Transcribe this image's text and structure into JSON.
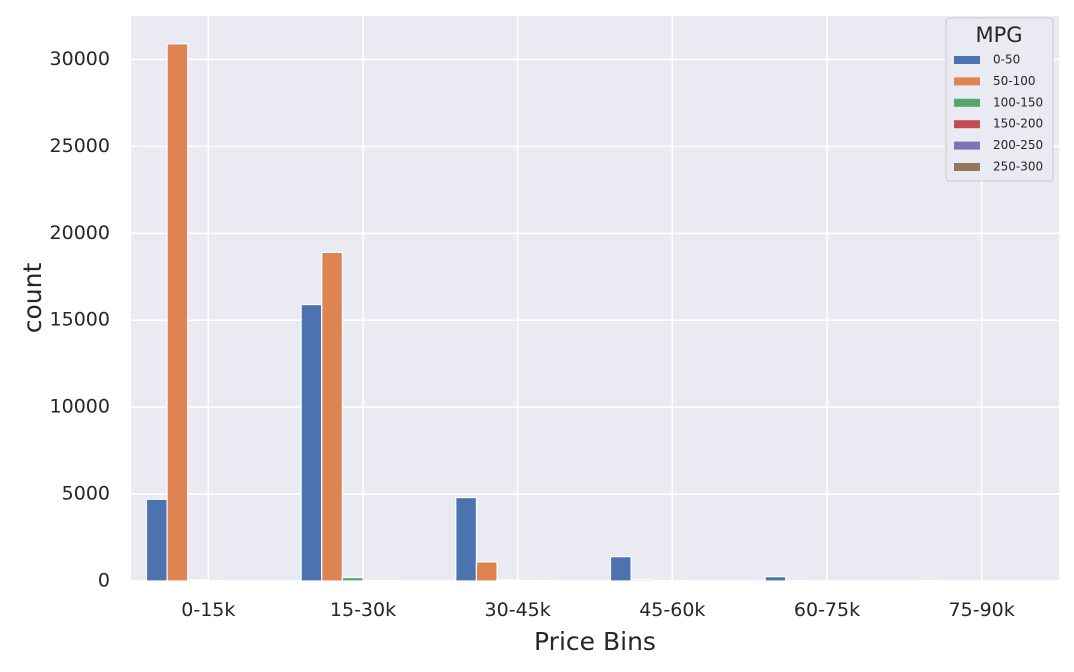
{
  "chart_data": {
    "type": "bar",
    "xlabel": "Price Bins",
    "ylabel": "count",
    "ylim": [
      0,
      32500
    ],
    "yticks": [
      "0",
      "5000",
      "10000",
      "15000",
      "20000",
      "25000",
      "30000"
    ],
    "grid": true,
    "legend": {
      "title": "MPG",
      "placement": "top-right"
    },
    "categories": [
      "0-15k",
      "15-30k",
      "30-45k",
      "45-60k",
      "60-75k",
      "75-90k"
    ],
    "series": [
      {
        "name": "0-50",
        "color": "#4c72b0",
        "values": [
          4700,
          15900,
          4800,
          1400,
          250,
          30
        ]
      },
      {
        "name": "50-100",
        "color": "#dd8452",
        "values": [
          30900,
          18900,
          1100,
          80,
          10,
          0
        ]
      },
      {
        "name": "100-150",
        "color": "#55a868",
        "values": [
          60,
          200,
          70,
          10,
          0,
          0
        ]
      },
      {
        "name": "150-200",
        "color": "#c44e52",
        "values": [
          5,
          30,
          30,
          5,
          0,
          0
        ]
      },
      {
        "name": "200-250",
        "color": "#8172b3",
        "values": [
          0,
          5,
          5,
          0,
          0,
          0
        ]
      },
      {
        "name": "250-300",
        "color": "#937860",
        "values": [
          0,
          0,
          0,
          0,
          0,
          0
        ]
      }
    ]
  }
}
